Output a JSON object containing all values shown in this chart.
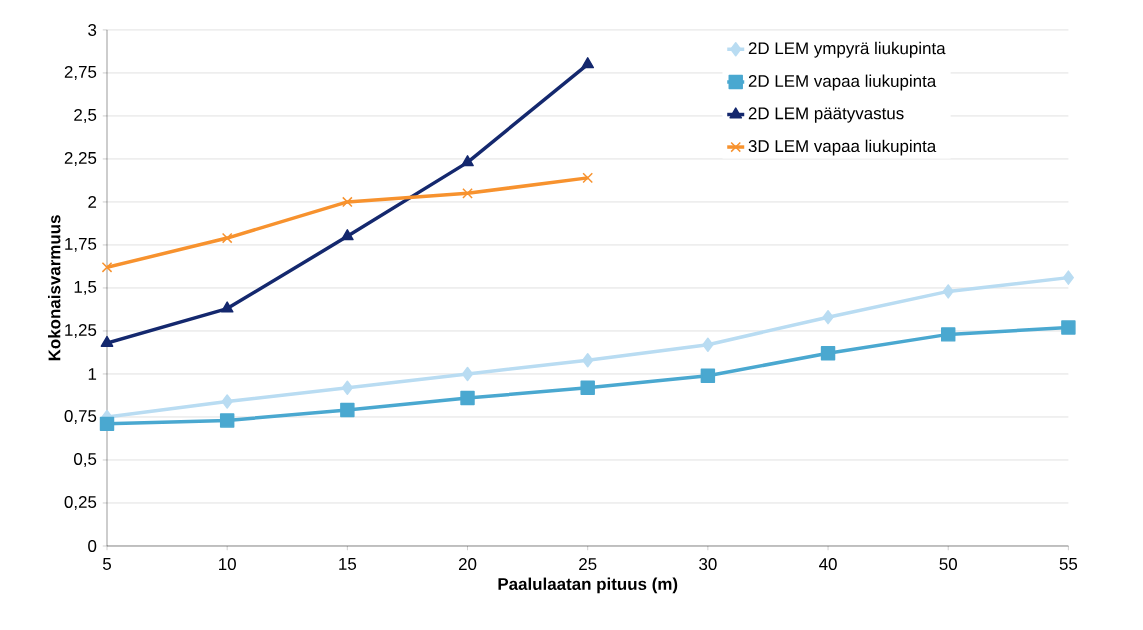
{
  "chart_data": {
    "type": "line",
    "xlabel": "Paalulaatan pituus (m)",
    "ylabel": "Kokonaisvarmuus",
    "categories": [
      "5",
      "10",
      "15",
      "20",
      "25",
      "30",
      "40",
      "50",
      "55"
    ],
    "series": [
      {
        "name": "2D LEM ympyrä liukupinta",
        "color": "#b9dcf2",
        "marker": "diamond",
        "values": [
          0.75,
          0.84,
          0.92,
          1.0,
          1.08,
          1.17,
          1.33,
          1.48,
          1.56
        ]
      },
      {
        "name": "2D LEM vapaa liukupinta",
        "color": "#4aa8d0",
        "marker": "square",
        "values": [
          0.71,
          0.73,
          0.79,
          0.86,
          0.92,
          0.99,
          1.12,
          1.23,
          1.27
        ]
      },
      {
        "name": "2D LEM päätyvastus",
        "color": "#14286e",
        "marker": "triangle",
        "values": [
          1.18,
          1.38,
          1.8,
          2.23,
          2.8,
          null,
          null,
          null,
          null
        ]
      },
      {
        "name": "3D LEM vapaa liukupinta",
        "color": "#f7922e",
        "marker": "cross",
        "values": [
          1.62,
          1.79,
          2.0,
          2.05,
          2.14,
          null,
          null,
          null,
          null
        ]
      }
    ],
    "ylim": [
      0,
      3
    ],
    "yticks": [
      0,
      {
        "value": 0.25,
        "label": "0,25"
      },
      {
        "value": 0.5,
        "label": "0,5"
      },
      {
        "value": 0.75,
        "label": "0,75"
      },
      1,
      {
        "value": 1.25,
        "label": "1,25"
      },
      {
        "value": 1.5,
        "label": "1,5"
      },
      {
        "value": 1.75,
        "label": "1,75"
      },
      2,
      {
        "value": 2.25,
        "label": "2,25"
      },
      {
        "value": 2.5,
        "label": "2,5"
      },
      {
        "value": 2.75,
        "label": "2,75"
      },
      3
    ],
    "grid": "y",
    "legend": "top right",
    "line_style": "solid"
  }
}
